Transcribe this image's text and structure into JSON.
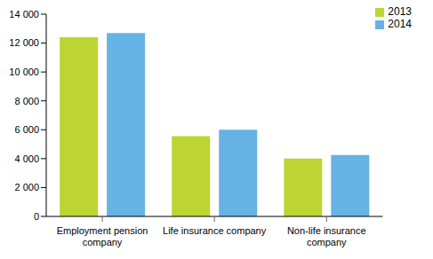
{
  "chart_data": {
    "type": "bar",
    "categories": [
      "Employment pension company",
      "Life insurance company",
      "Non-life insurance company"
    ],
    "series": [
      {
        "name": "2013",
        "color": "#bcd532",
        "values": [
          12400,
          5550,
          4000
        ]
      },
      {
        "name": "2014",
        "color": "#66b3e5",
        "values": [
          12700,
          6000,
          4250
        ]
      }
    ],
    "ylim": [
      0,
      14000
    ],
    "yticks": [
      0,
      {
        "value": 2000,
        "label": "2 000"
      },
      {
        "value": 4000,
        "label": "4 000"
      },
      {
        "value": 6000,
        "label": "6 000"
      },
      {
        "value": 8000,
        "label": "8 000"
      },
      {
        "value": 10000,
        "label": "10 000"
      },
      {
        "value": 12000,
        "label": "12 000"
      },
      {
        "value": 14000,
        "label": "14 000"
      }
    ],
    "grid": false,
    "legend": "upper right"
  }
}
